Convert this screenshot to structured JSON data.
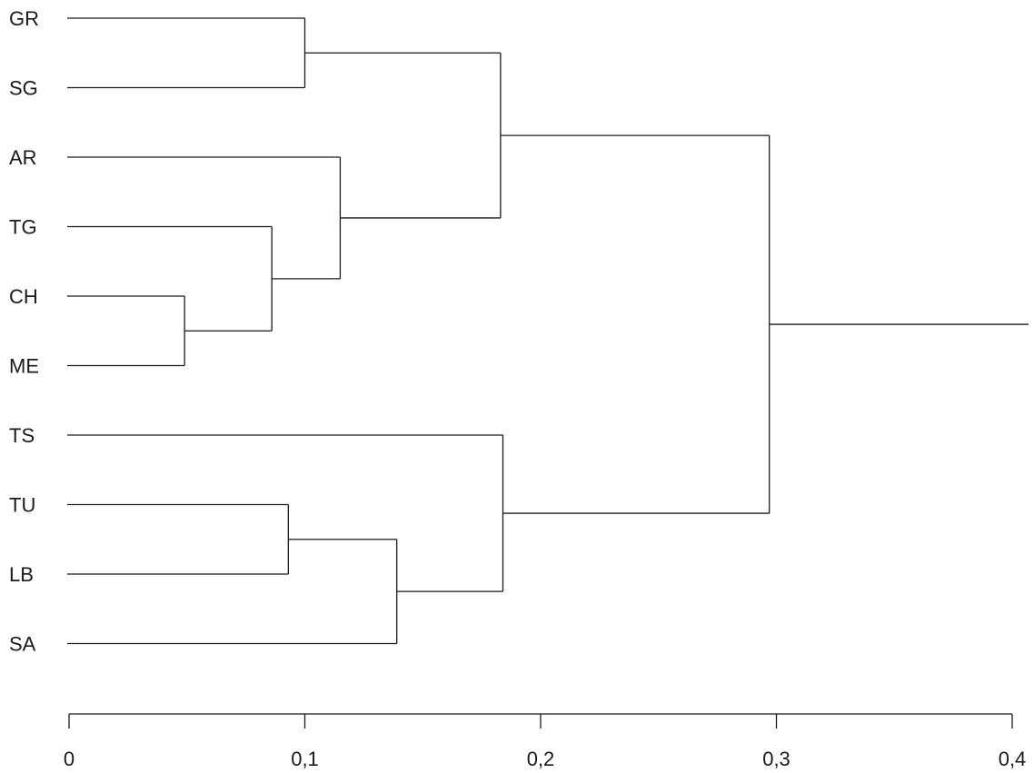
{
  "chart_data": {
    "type": "dendrogram",
    "orientation": "horizontal",
    "title": "",
    "xlabel": "",
    "ylabel": "",
    "xlim": [
      0,
      0.41
    ],
    "x_ticks": [
      0,
      0.1,
      0.2,
      0.3,
      0.4
    ],
    "x_tick_labels": [
      "0",
      "0,1",
      "0,2",
      "0,3",
      "0,4"
    ],
    "leaves": [
      "GR",
      "SG",
      "AR",
      "TG",
      "CH",
      "ME",
      "TS",
      "TU",
      "LB",
      "SA"
    ],
    "merges": [
      {
        "id": "m1",
        "left": "CH",
        "right": "ME",
        "height": 0.049
      },
      {
        "id": "m2",
        "left": "TU",
        "right": "LB",
        "height": 0.093
      },
      {
        "id": "m3",
        "left": "TG",
        "right": "m1",
        "height": 0.086
      },
      {
        "id": "m4",
        "left": "GR",
        "right": "SG",
        "height": 0.1
      },
      {
        "id": "m5",
        "left": "AR",
        "right": "m3",
        "height": 0.115
      },
      {
        "id": "m6",
        "left": "m2",
        "right": "SA",
        "height": 0.139
      },
      {
        "id": "m7",
        "left": "m4",
        "right": "m5",
        "height": 0.183
      },
      {
        "id": "m8",
        "left": "TS",
        "right": "m6",
        "height": 0.184
      },
      {
        "id": "m9",
        "left": "m7",
        "right": "m8",
        "height": 0.297
      }
    ],
    "root_extends_to": 0.407,
    "grid": false,
    "legend": "none",
    "line_color": "#1a1a1a"
  }
}
